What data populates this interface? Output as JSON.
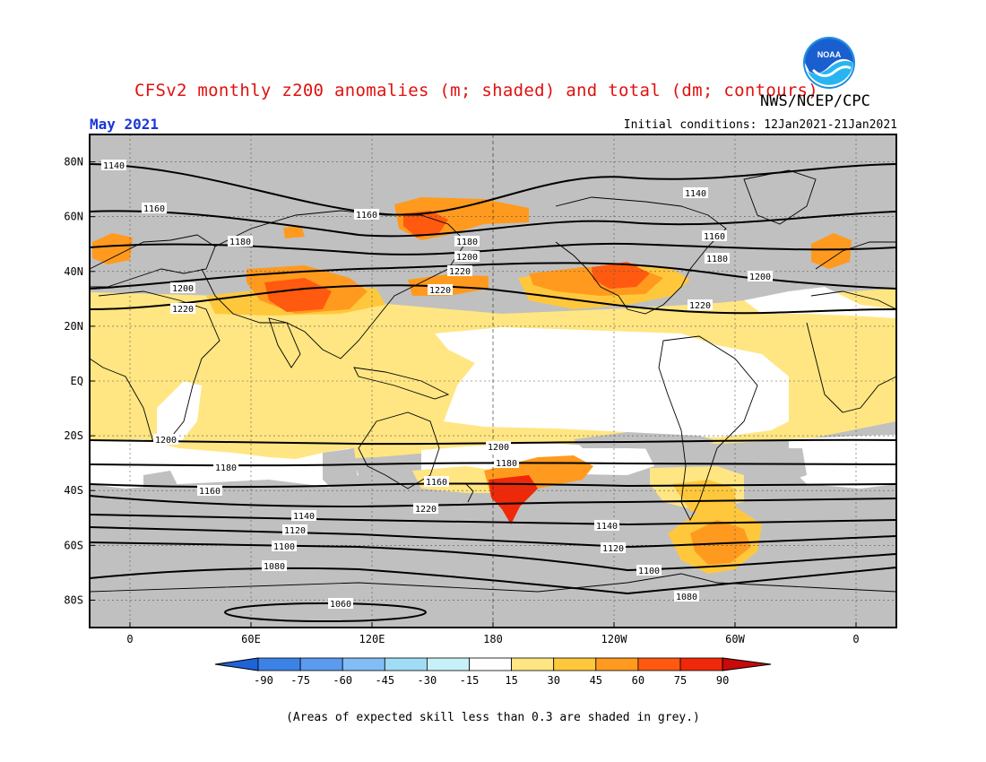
{
  "title": "CFSv2 monthly z200 anomalies (m; shaded) and total (dm; contours)",
  "month_label": "May 2021",
  "initial_conditions": "Initial conditions: 12Jan2021-21Jan2021",
  "agency": "NWS/NCEP/CPC",
  "logo_text": "NOAA",
  "footnote": "(Areas of expected skill less than 0.3 are shaded in grey.)",
  "lat_labels": [
    "80N",
    "60N",
    "40N",
    "20N",
    "EQ",
    "20S",
    "40S",
    "60S",
    "80S"
  ],
  "lat_values": [
    80,
    60,
    40,
    20,
    0,
    -20,
    -40,
    -60,
    -80
  ],
  "lon_labels": [
    "0",
    "60E",
    "120E",
    "180",
    "120W",
    "60W",
    "0"
  ],
  "lon_values": [
    0,
    60,
    120,
    180,
    240,
    300,
    360
  ],
  "colorbar": {
    "labels": [
      "-90",
      "-75",
      "-60",
      "-45",
      "-30",
      "-15",
      "15",
      "30",
      "45",
      "60",
      "75",
      "90"
    ],
    "colors": [
      "#1e64d8",
      "#3c82e6",
      "#5a9bf0",
      "#82bef5",
      "#a0dcf5",
      "#c8f0f8",
      "#ffffff",
      "#ffe682",
      "#ffc83c",
      "#ff9a1e",
      "#ff5a0f",
      "#f0280a",
      "#c80a0a"
    ],
    "grey": "#c0c0c0"
  },
  "contour_labels": [
    "1140",
    "1160",
    "1180",
    "1200",
    "1220",
    "1140",
    "1160",
    "1180",
    "1200",
    "1220",
    "1160",
    "1180",
    "1200",
    "1220",
    "1220",
    "1200",
    "1180",
    "1160",
    "1220",
    "1200",
    "1180",
    "1160",
    "1140",
    "1120",
    "1100",
    "1080",
    "1060",
    "1140",
    "1120",
    "1100",
    "1080"
  ]
}
